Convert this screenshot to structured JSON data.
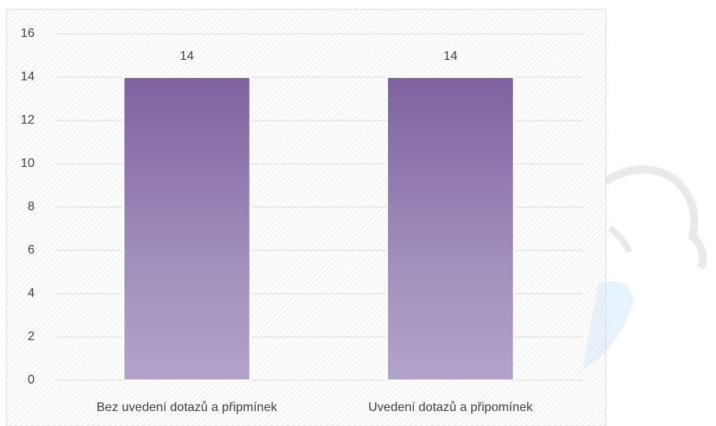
{
  "chart_data": {
    "type": "bar",
    "categories": [
      "Bez uvedení dotazů a připmínek",
      "Uvedení dotazů a připomínek"
    ],
    "values": [
      14,
      14
    ],
    "color": "#8064a2",
    "ylim": [
      0,
      16
    ],
    "yticks": [
      0,
      2,
      4,
      6,
      8,
      10,
      12,
      14,
      16
    ],
    "grid": true,
    "data_labels": true
  }
}
